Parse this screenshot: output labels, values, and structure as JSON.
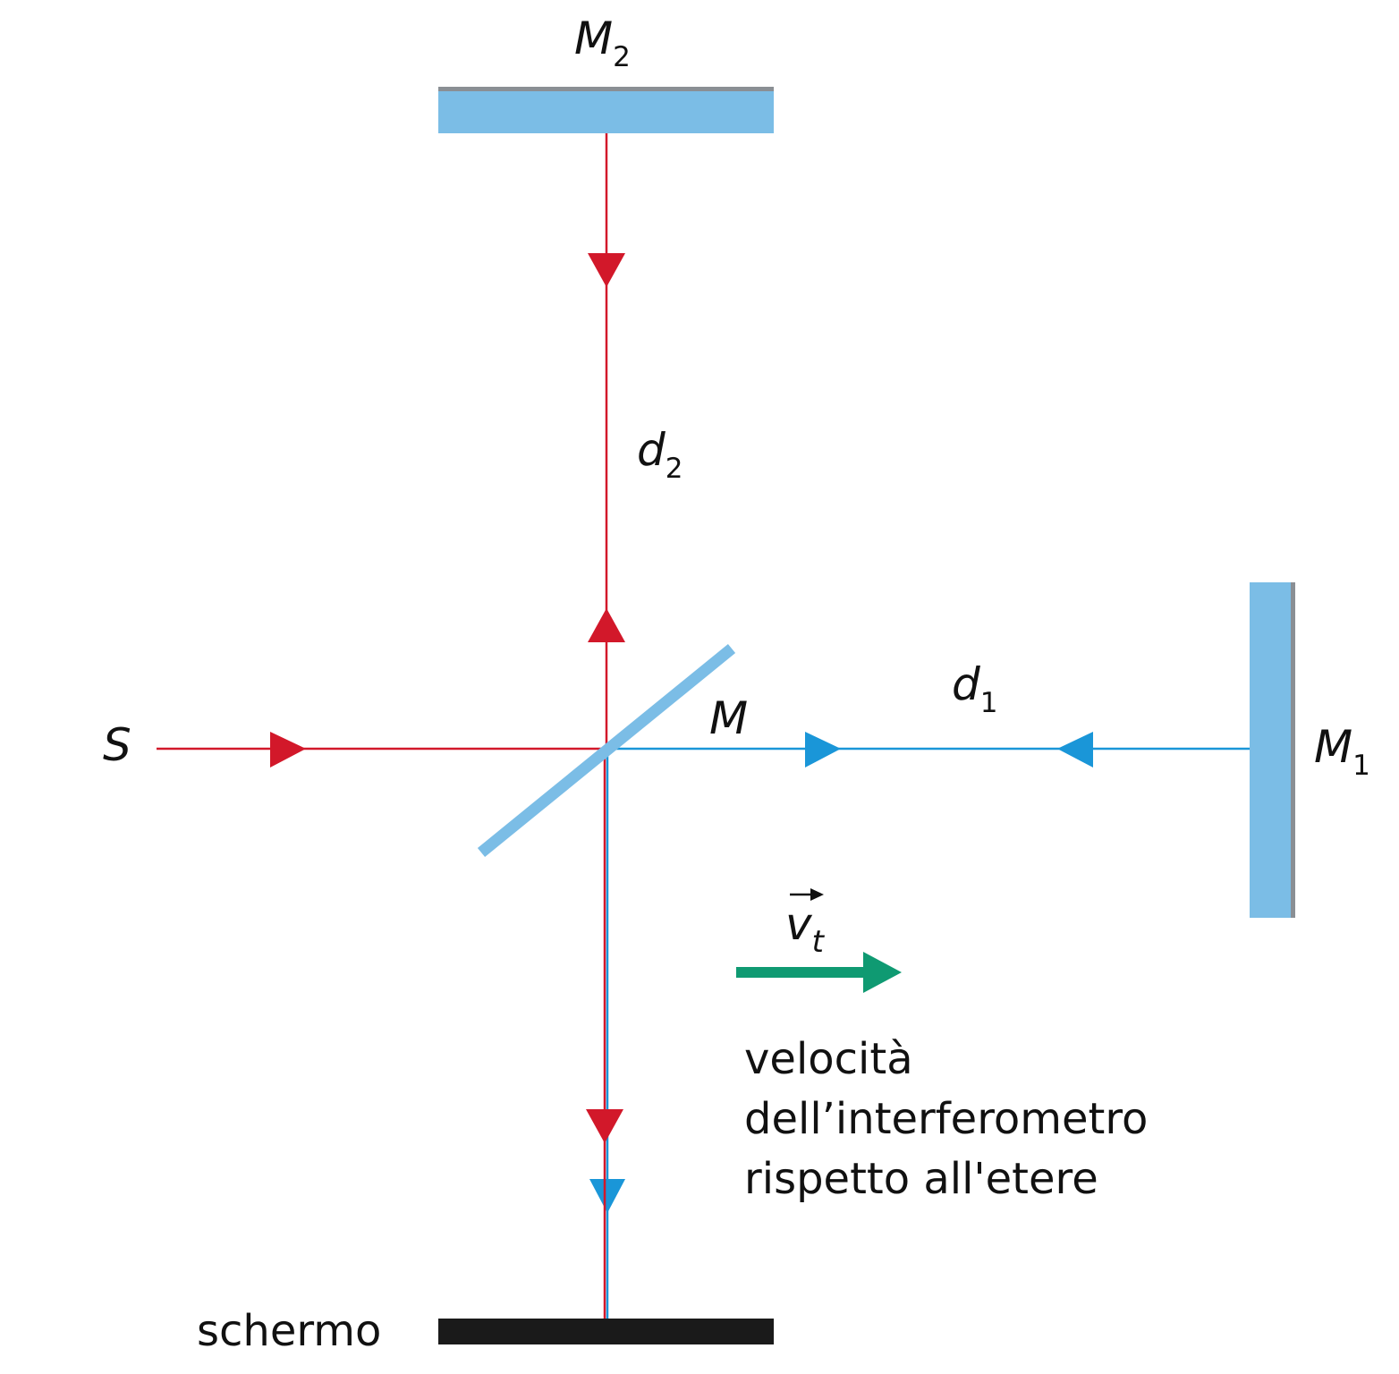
{
  "labels": {
    "mirror2_main": "M",
    "mirror2_sub": "2",
    "mirror1_main": "M",
    "mirror1_sub": "1",
    "beamsplitter": "M",
    "source": "S",
    "d2_main": "d",
    "d2_sub": "2",
    "d1_main": "d",
    "d1_sub": "1",
    "velocity_main": "v",
    "velocity_sub": "t",
    "screen": "schermo",
    "caption_line1": "velocità",
    "caption_line2": "dell’interferometro",
    "caption_line3": "rispetto all'etere"
  },
  "colors": {
    "red_beam": "#d2182a",
    "blue_beam": "#1a96d8",
    "mirror_fill": "#7bbde6",
    "mirror_edge": "#8a8f94",
    "velocity_arrow": "#0f9a72",
    "screen": "#1a1a1a"
  }
}
